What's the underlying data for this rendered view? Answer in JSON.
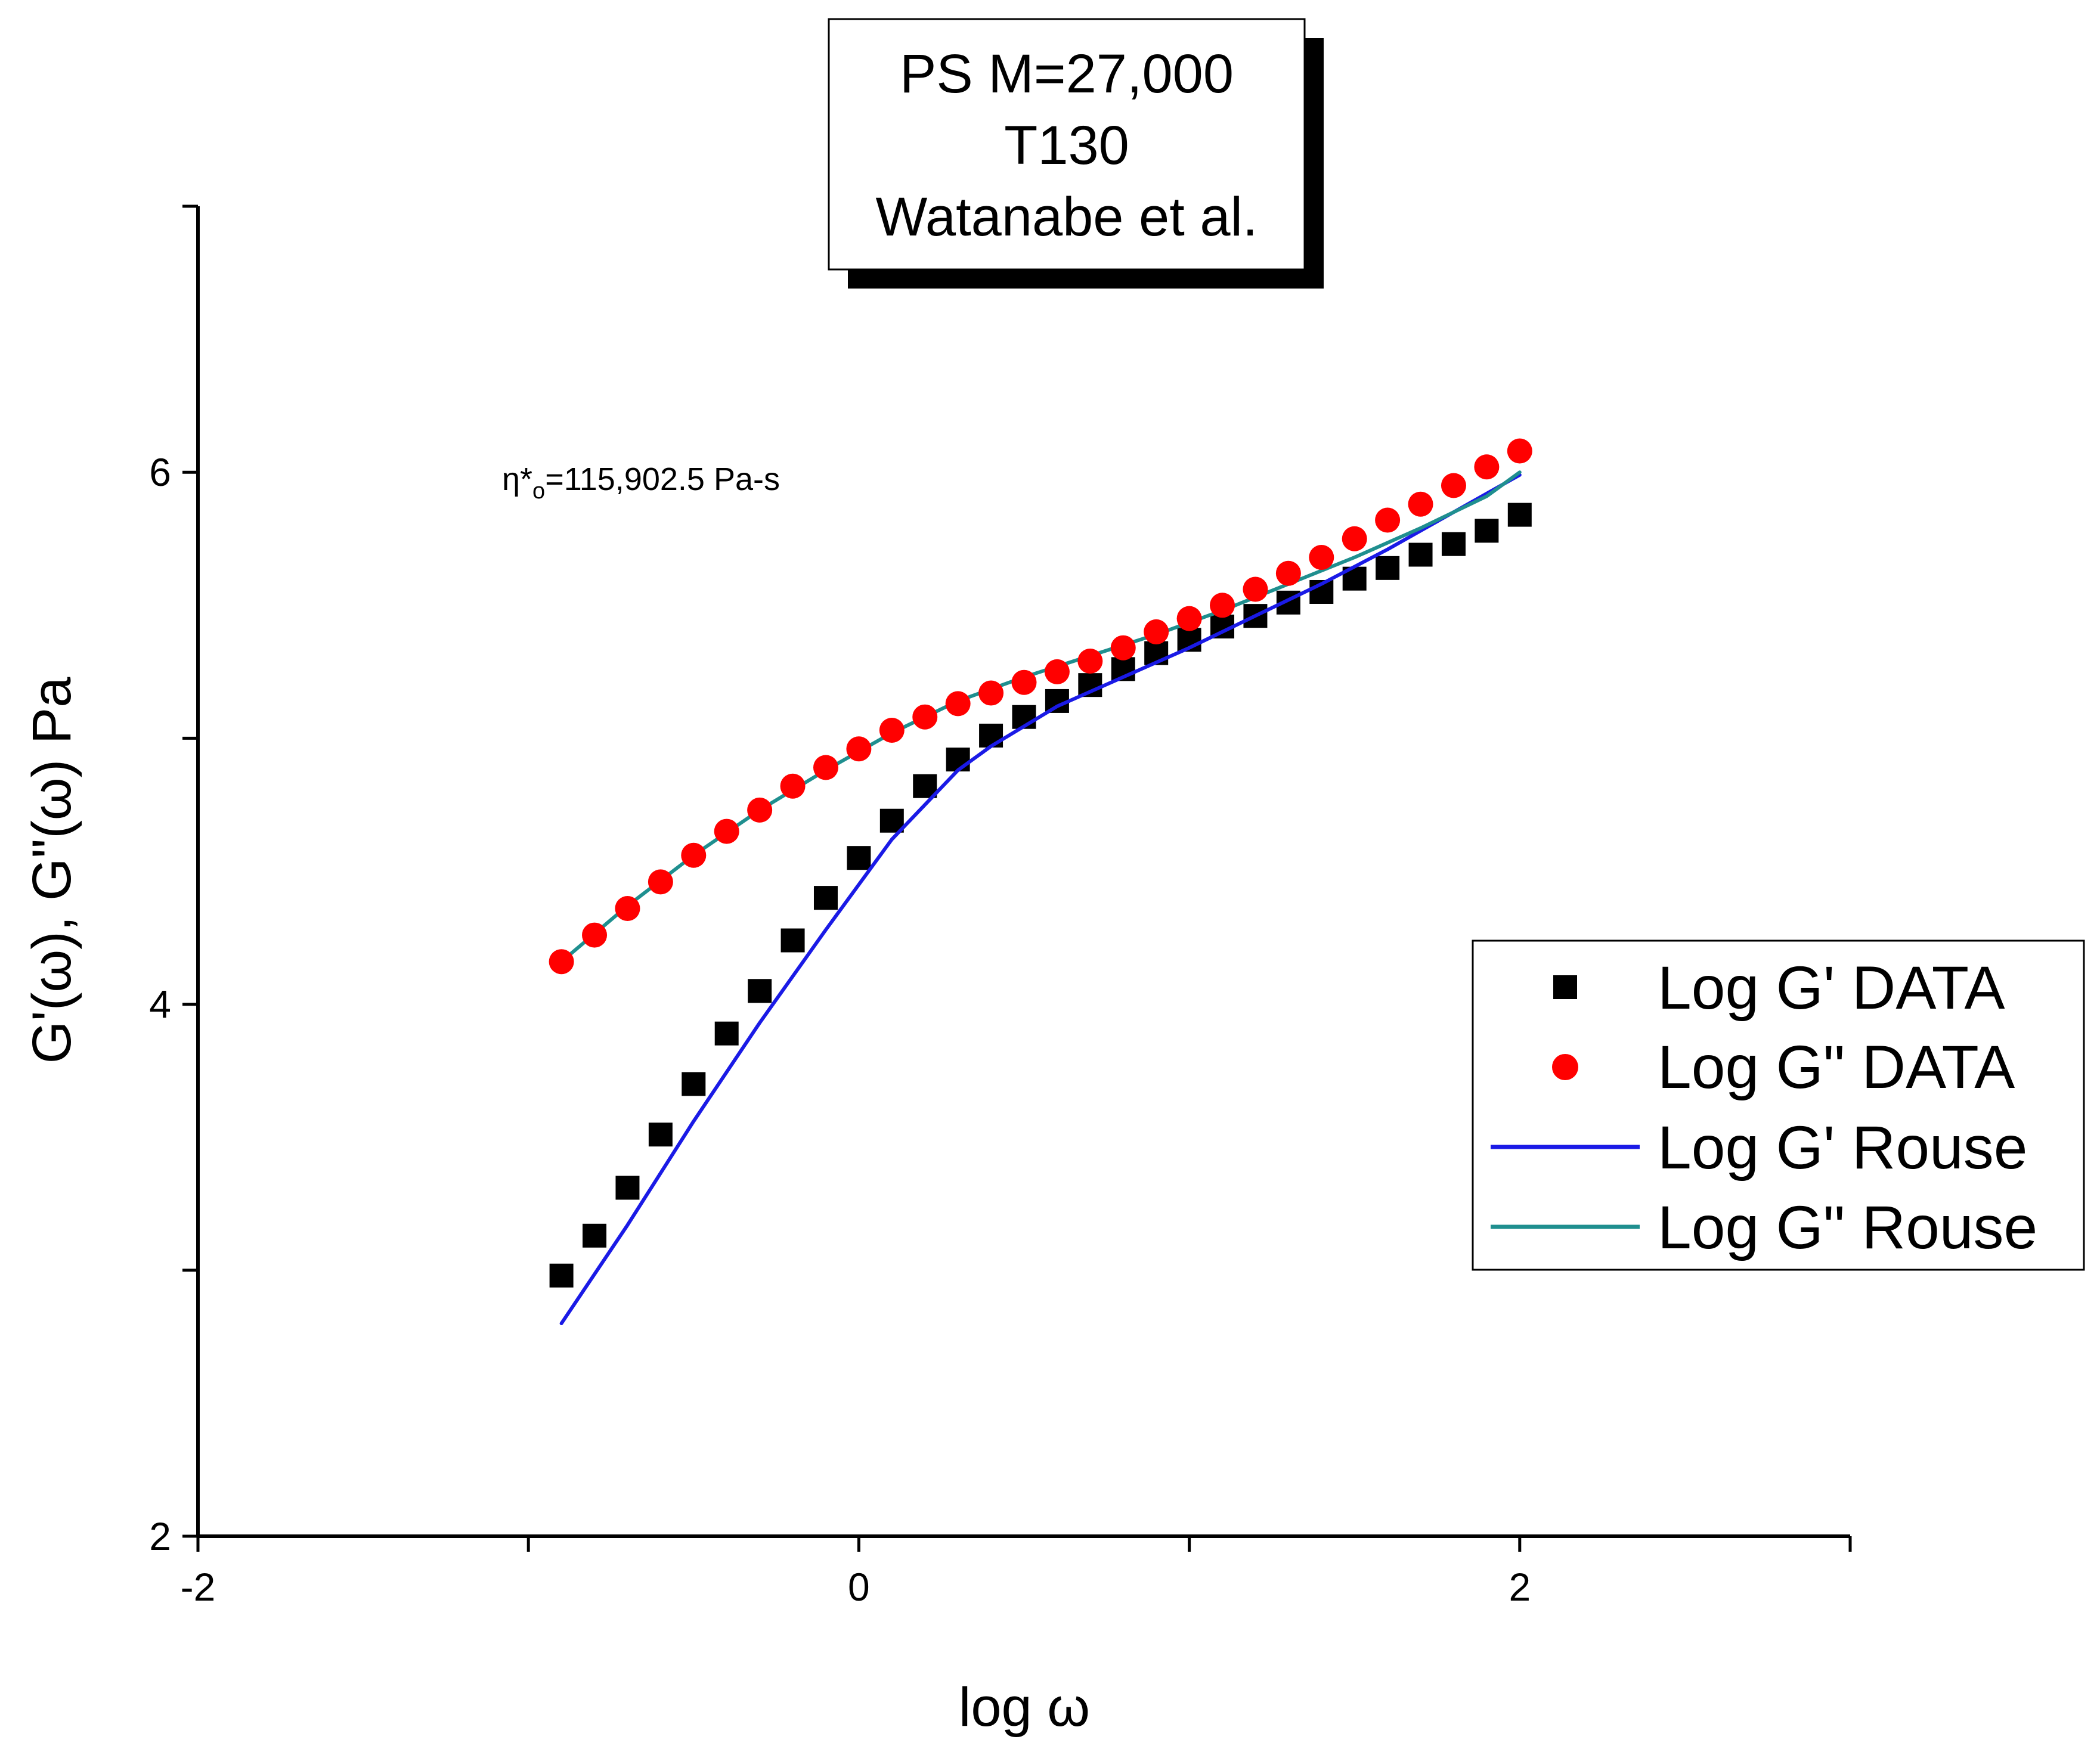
{
  "chart_data": {
    "type": "scatter",
    "title_lines": [
      "PS M=27,000",
      "T130",
      "Watanabe et al."
    ],
    "xlabel": "log ω",
    "ylabel": "G'(ω), G\"(ω) Pa",
    "xlim": [
      -2,
      3
    ],
    "ylim": [
      2,
      7
    ],
    "x_ticks": [
      -2,
      -1,
      0,
      1,
      2,
      3
    ],
    "x_tick_labels": [
      "-2",
      "0",
      "2"
    ],
    "x_labeled_ticks": [
      -2,
      0,
      2
    ],
    "y_ticks": [
      2,
      3,
      4,
      5,
      6,
      7
    ],
    "y_tick_labels": [
      "2",
      "4",
      "6"
    ],
    "y_labeled_ticks": [
      2,
      4,
      6
    ],
    "annotation": {
      "symbol": "η*",
      "subscript": "o",
      "value_text": "=115,902.5 Pa-s",
      "x": -1.1,
      "y": 5.97
    },
    "legend_position": "right",
    "series": [
      {
        "name": "Log G' DATA",
        "kind": "marker-square",
        "color": "#000000",
        "x": [
          -0.9,
          -0.8,
          -0.7,
          -0.6,
          -0.5,
          -0.4,
          -0.3,
          -0.2,
          -0.1,
          0.0,
          0.1,
          0.2,
          0.3,
          0.4,
          0.5,
          0.6,
          0.7,
          0.8,
          0.9,
          1.0,
          1.1,
          1.2,
          1.3,
          1.4,
          1.5,
          1.6,
          1.7,
          1.8,
          1.9,
          2.0
        ],
        "y": [
          2.98,
          3.13,
          3.31,
          3.51,
          3.7,
          3.89,
          4.05,
          4.24,
          4.4,
          4.55,
          4.69,
          4.82,
          4.92,
          5.01,
          5.08,
          5.14,
          5.2,
          5.26,
          5.32,
          5.37,
          5.42,
          5.46,
          5.51,
          5.55,
          5.6,
          5.64,
          5.69,
          5.73,
          5.78,
          5.84
        ]
      },
      {
        "name": "Log G\" DATA",
        "kind": "marker-circle",
        "color": "#ff0000",
        "x": [
          -0.9,
          -0.8,
          -0.7,
          -0.6,
          -0.5,
          -0.4,
          -0.3,
          -0.2,
          -0.1,
          0.0,
          0.1,
          0.2,
          0.3,
          0.4,
          0.5,
          0.6,
          0.7,
          0.8,
          0.9,
          1.0,
          1.1,
          1.2,
          1.3,
          1.4,
          1.5,
          1.6,
          1.7,
          1.8,
          1.9,
          2.0
        ],
        "y": [
          4.16,
          4.26,
          4.36,
          4.46,
          4.56,
          4.65,
          4.73,
          4.82,
          4.89,
          4.96,
          5.03,
          5.08,
          5.13,
          5.17,
          5.21,
          5.25,
          5.29,
          5.34,
          5.4,
          5.45,
          5.5,
          5.56,
          5.62,
          5.68,
          5.75,
          5.82,
          5.88,
          5.95,
          6.02,
          6.08
        ]
      },
      {
        "name": "Log G' Rouse",
        "kind": "line",
        "color": "#1a1ae6",
        "x": [
          -0.9,
          -0.7,
          -0.5,
          -0.3,
          -0.1,
          0.1,
          0.3,
          0.4,
          0.6,
          0.8,
          1.0,
          1.2,
          1.4,
          1.6,
          1.8,
          2.0
        ],
        "y": [
          2.8,
          3.17,
          3.56,
          3.93,
          4.28,
          4.62,
          4.88,
          4.97,
          5.12,
          5.23,
          5.34,
          5.46,
          5.58,
          5.71,
          5.85,
          5.99
        ]
      },
      {
        "name": "Log G\" Rouse",
        "kind": "line",
        "color": "#1f8f8f",
        "x": [
          -0.9,
          -0.7,
          -0.5,
          -0.3,
          -0.1,
          0.1,
          0.3,
          0.5,
          0.7,
          0.9,
          1.1,
          1.3,
          1.5,
          1.7,
          1.9,
          2.0
        ],
        "y": [
          4.16,
          4.37,
          4.56,
          4.73,
          4.88,
          5.02,
          5.14,
          5.23,
          5.31,
          5.39,
          5.48,
          5.58,
          5.68,
          5.79,
          5.91,
          6.0
        ]
      }
    ]
  }
}
